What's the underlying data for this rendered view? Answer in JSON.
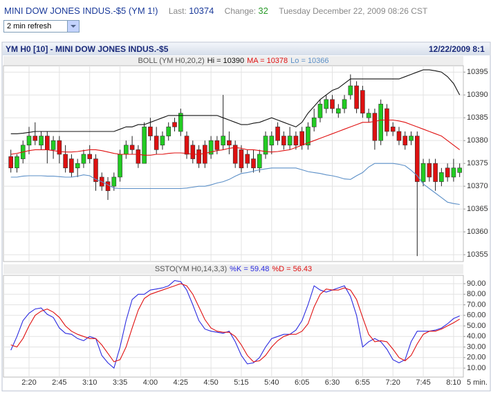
{
  "header": {
    "symbol": "MINI DOW JONES INDUS.-$5 (YM 1!)",
    "last_label": "Last:",
    "last": 10374,
    "change_label": "Change:",
    "change": 32,
    "timestamp": "Tuesday December 22, 2009 08:26 CST"
  },
  "refresh": "2 min refresh",
  "chart_data": [
    {
      "type": "candlestick",
      "title": "YM H0 [10] - MINI DOW JONES INDUS.-$5",
      "date": "12/22/2009 8:1",
      "legend_title": "BOLL (YM H0,20,2)",
      "up_color": "#22cc22",
      "down_color": "#dd1111",
      "grid": true,
      "ylim": [
        10353.5,
        10396.4
      ],
      "yticks": [
        10355,
        10360,
        10365,
        10370,
        10375,
        10380,
        10385,
        10390,
        10395
      ],
      "open": [
        10376.5,
        10374,
        10376,
        10379,
        10381,
        10379,
        10381,
        10378,
        10380,
        10377,
        10376,
        10374,
        10375,
        10377,
        10376,
        10372,
        10371,
        10370,
        10372,
        10377,
        10379,
        10378,
        10375,
        10383,
        10381,
        10379,
        10381,
        10384,
        10382,
        10381,
        10379,
        10378,
        10379,
        10377,
        10380,
        10379,
        10380,
        10379,
        10378,
        10377,
        10376,
        10374,
        10377,
        10379,
        10383,
        10381,
        10379,
        10381,
        10382,
        10379,
        10383,
        10385,
        10387,
        10389,
        10386,
        10387,
        10390,
        10392,
        10391,
        10385,
        10386,
        10380,
        10387,
        10383,
        10382,
        10381,
        10380,
        10381,
        10371,
        10375,
        10375,
        10371,
        10374,
        10372,
        10373
      ],
      "high": [
        10378,
        10377,
        10380,
        10383,
        10384,
        10382,
        10382,
        10381,
        10381,
        10379,
        10377,
        10376,
        10378,
        10379,
        10377,
        10373,
        10372,
        10373,
        10378,
        10380,
        10381,
        10379,
        10384,
        10385,
        10383,
        10382,
        10384,
        10385,
        10387,
        10382,
        10380,
        10379,
        10380,
        10381,
        10381,
        10390,
        10382,
        10380,
        10379,
        10378,
        10378,
        10378,
        10382,
        10382,
        10384,
        10382,
        10383,
        10382,
        10383,
        10384,
        10387,
        10389,
        10390,
        10390,
        10388,
        10390,
        10394.5,
        10393,
        10392,
        10387,
        10387,
        10389,
        10388,
        10384,
        10383,
        10382,
        10382,
        10382,
        10376,
        10376,
        10376,
        10374,
        10375,
        10376,
        10375
      ],
      "low": [
        10373,
        10373,
        10375,
        10377,
        10379,
        10378,
        10375,
        10376,
        10375,
        10373,
        10372,
        10372,
        10374,
        10375,
        10369,
        10369,
        10367,
        10369,
        10371,
        10376,
        10377,
        10374,
        10375,
        10380,
        10377,
        10378,
        10380,
        10382,
        10381,
        10376,
        10375,
        10374,
        10374,
        10376,
        10377,
        10378,
        10377,
        10374,
        10373,
        10374,
        10373,
        10373,
        10376,
        10377,
        10379,
        10378,
        10378,
        10378,
        10378,
        10378,
        10382,
        10384,
        10386,
        10386,
        10385,
        10386,
        10389,
        10386,
        10385,
        10384,
        10378,
        10379,
        10381,
        10381,
        10379,
        10378,
        10379,
        10354.7,
        10370,
        10371,
        10369,
        10370,
        10371,
        10371,
        10372
      ],
      "close": [
        10374,
        10376.5,
        10379,
        10381,
        10380,
        10381,
        10378,
        10380,
        10377,
        10374,
        10373,
        10375,
        10377,
        10376,
        10371,
        10370,
        10369,
        10372,
        10377,
        10379,
        10378,
        10375,
        10383,
        10381,
        10378,
        10381,
        10383,
        10383,
        10386,
        10377,
        10376,
        10375,
        10375,
        10380,
        10378,
        10381,
        10379,
        10375,
        10374,
        10375,
        10374,
        10377,
        10381,
        10381,
        10380,
        10379,
        10381,
        10379,
        10379,
        10383,
        10385,
        10388,
        10389,
        10387,
        10387,
        10389,
        10392,
        10387,
        10386,
        10386,
        10380,
        10388,
        10382,
        10382,
        10380,
        10379,
        10381,
        10371,
        10375,
        10372,
        10371,
        10373,
        10372,
        10374,
        10374
      ],
      "series": [
        {
          "name": "Hi = 10390",
          "color": "#111111",
          "values": [
            10381.5,
            10381.5,
            10381.6,
            10381.8,
            10382,
            10382,
            10382,
            10382,
            10382,
            10382,
            10382,
            10382,
            10382,
            10382,
            10382,
            10382,
            10382,
            10382,
            10382.5,
            10383,
            10383,
            10383.5,
            10383.5,
            10384,
            10384.5,
            10385,
            10385.5,
            10385.5,
            10385.5,
            10385.5,
            10385.5,
            10385.5,
            10385.5,
            10385.5,
            10385.5,
            10385,
            10384.5,
            10384,
            10383.5,
            10383.5,
            10383.8,
            10384,
            10384.5,
            10385,
            10384.5,
            10384,
            10383.5,
            10383,
            10384,
            10386,
            10387.5,
            10389,
            10390,
            10391,
            10391.5,
            10392.5,
            10393.5,
            10393.5,
            10393.5,
            10393.5,
            10393.5,
            10393.5,
            10393.5,
            10393.5,
            10393.5,
            10394,
            10394.5,
            10395,
            10395.5,
            10395.5,
            10395.3,
            10395,
            10394,
            10392.5,
            10390
          ]
        },
        {
          "name": "MA = 10378",
          "color": "#e01010",
          "values": [
            10377,
            10377.2,
            10377.5,
            10377.8,
            10378,
            10378,
            10378,
            10377.8,
            10377.6,
            10377.5,
            10377.5,
            10377.6,
            10377.8,
            10378,
            10378,
            10377.8,
            10377.5,
            10377.2,
            10377,
            10377,
            10377,
            10377,
            10376.8,
            10376.8,
            10377,
            10377,
            10377.2,
            10377.3,
            10377.3,
            10377.2,
            10377,
            10377,
            10377.2,
            10377.5,
            10377.8,
            10378,
            10378.3,
            10378.5,
            10378.3,
            10378,
            10378,
            10377.8,
            10377.6,
            10377.5,
            10377.6,
            10377.8,
            10378,
            10378.5,
            10379,
            10379.5,
            10380,
            10380.5,
            10381,
            10381.5,
            10382,
            10382.5,
            10383,
            10383.5,
            10384,
            10384,
            10384.2,
            10384.5,
            10384.5,
            10384.5,
            10384.3,
            10384,
            10383.5,
            10383,
            10382.5,
            10382,
            10381.5,
            10381,
            10380,
            10379,
            10378
          ]
        },
        {
          "name": "Lo = 10366",
          "color": "#5b8fc7",
          "values": [
            10372,
            10372,
            10372.2,
            10372.3,
            10372.3,
            10372.3,
            10372.2,
            10372.2,
            10372.1,
            10372,
            10372,
            10372.2,
            10372.5,
            10372.3,
            10371.5,
            10371,
            10370.3,
            10369.6,
            10369.5,
            10369.5,
            10369.5,
            10369.5,
            10369.5,
            10369.5,
            10369.5,
            10369.5,
            10369.5,
            10369.5,
            10369.5,
            10369.6,
            10369.8,
            10370,
            10370,
            10370.3,
            10370.7,
            10371,
            10371.5,
            10372.2,
            10372.8,
            10373,
            10373.3,
            10373.6,
            10373.8,
            10374,
            10374,
            10374,
            10374,
            10374,
            10373.6,
            10373.2,
            10373,
            10372.8,
            10372.5,
            10372.3,
            10372,
            10371.6,
            10371.5,
            10372.3,
            10373,
            10374.2,
            10375,
            10375,
            10375,
            10375,
            10374.8,
            10374.5,
            10373.5,
            10372.3,
            10370.5,
            10369.5,
            10368.5,
            10367.5,
            10366.5,
            10366.2,
            10366
          ]
        }
      ]
    },
    {
      "type": "line",
      "legend_title": "SSTO(YM H0,14,3,3)",
      "xlabel": "5 min.",
      "grid": true,
      "ylim": [
        1.5,
        97.9
      ],
      "yticks": [
        {
          "value": 10,
          "label": "10.00"
        },
        {
          "value": 20,
          "label": "20.00"
        },
        {
          "value": 30,
          "label": "30.00"
        },
        {
          "value": 40,
          "label": "40.00"
        },
        {
          "value": 50,
          "label": "50.00"
        },
        {
          "value": 60,
          "label": "60.00"
        },
        {
          "value": 70,
          "label": "70.00"
        },
        {
          "value": 80,
          "label": "80.00"
        },
        {
          "value": 90,
          "label": "90.00"
        }
      ],
      "categories": [
        null,
        null,
        null,
        "2:20",
        null,
        null,
        null,
        null,
        "2:45",
        null,
        null,
        null,
        null,
        "3:10",
        null,
        null,
        null,
        null,
        "3:35",
        null,
        null,
        null,
        null,
        "4:00",
        null,
        null,
        null,
        null,
        "4:25",
        null,
        null,
        null,
        null,
        "4:50",
        null,
        null,
        null,
        null,
        "5:15",
        null,
        null,
        null,
        null,
        "5:40",
        null,
        null,
        null,
        null,
        "6:05",
        null,
        null,
        null,
        null,
        "6:30",
        null,
        null,
        null,
        null,
        "6:55",
        null,
        null,
        null,
        null,
        "7:20",
        null,
        null,
        null,
        null,
        "7:45",
        null,
        null,
        null,
        null,
        "8:10",
        null
      ],
      "series": [
        {
          "name": "%K = 59.48",
          "color": "#2a2ae0",
          "values": [
            27,
            40,
            55,
            62,
            66,
            67,
            61,
            58,
            48,
            43,
            42,
            38,
            36,
            40,
            38,
            22,
            15,
            10,
            30,
            55,
            75,
            80,
            80,
            84,
            85,
            86,
            88,
            93,
            92,
            84,
            70,
            55,
            47,
            45,
            44,
            43,
            45,
            35,
            22,
            14,
            15,
            20,
            30,
            38,
            40,
            42,
            42,
            46,
            55,
            70,
            88,
            84,
            82,
            84,
            86,
            88,
            78,
            60,
            30,
            35,
            38,
            35,
            28,
            18,
            15,
            18,
            35,
            45,
            45,
            45,
            46,
            48,
            52,
            57,
            59.48
          ]
        },
        {
          "name": "%D = 56.43",
          "color": "#e01010",
          "values": [
            32,
            30,
            38,
            50,
            60,
            64,
            66,
            63,
            58,
            50,
            45,
            42,
            40,
            38,
            38,
            32,
            24,
            16,
            18,
            30,
            48,
            65,
            76,
            80,
            82,
            84,
            86,
            88,
            90,
            88,
            80,
            68,
            56,
            48,
            45,
            44,
            44,
            40,
            32,
            22,
            16,
            17,
            22,
            30,
            36,
            40,
            42,
            42,
            45,
            52,
            68,
            80,
            85,
            84,
            84,
            86,
            84,
            75,
            58,
            42,
            35,
            36,
            35,
            28,
            20,
            17,
            22,
            33,
            42,
            45,
            45,
            47,
            50,
            53,
            56.43
          ]
        }
      ]
    }
  ]
}
